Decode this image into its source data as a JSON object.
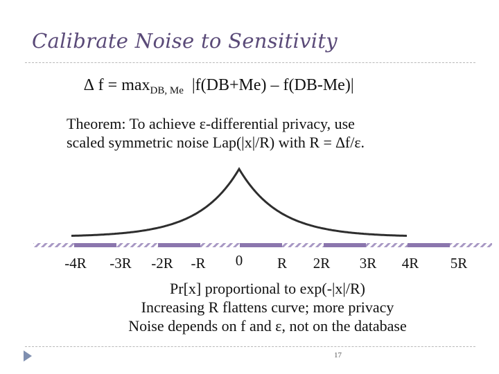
{
  "slide": {
    "title": "Calibrate Noise to Sensitivity",
    "page_number": "17"
  },
  "formula": {
    "lhs": "∆ f = max",
    "subscript": "DB, Me",
    "rhs": "|f(DB+Me) – f(DB-Me)|"
  },
  "theorem": {
    "line1": "Theorem: To achieve ε-differential privacy, use",
    "line2": "scaled symmetric noise Lap(|x|/R) with R = ∆f/ε."
  },
  "diagram": {
    "curve": "laplace",
    "axis_labels": [
      "-4R",
      "-3R",
      "-2R",
      "-R",
      "0",
      "R",
      "2R",
      "3R",
      "4R",
      "5R"
    ],
    "colors": {
      "curve": "#2e2e2e",
      "axis_solid": "#8b76ad",
      "axis_hatch": "#a898c4"
    }
  },
  "notes": {
    "line1": "Pr[x] proportional to exp(-|x|/R)",
    "line2": "Increasing R flattens curve; more privacy",
    "line3": "Noise depends on f and ε, not on the database"
  },
  "colors": {
    "title": "#5a4a78",
    "nav_arrow": "#7f8fb0"
  }
}
